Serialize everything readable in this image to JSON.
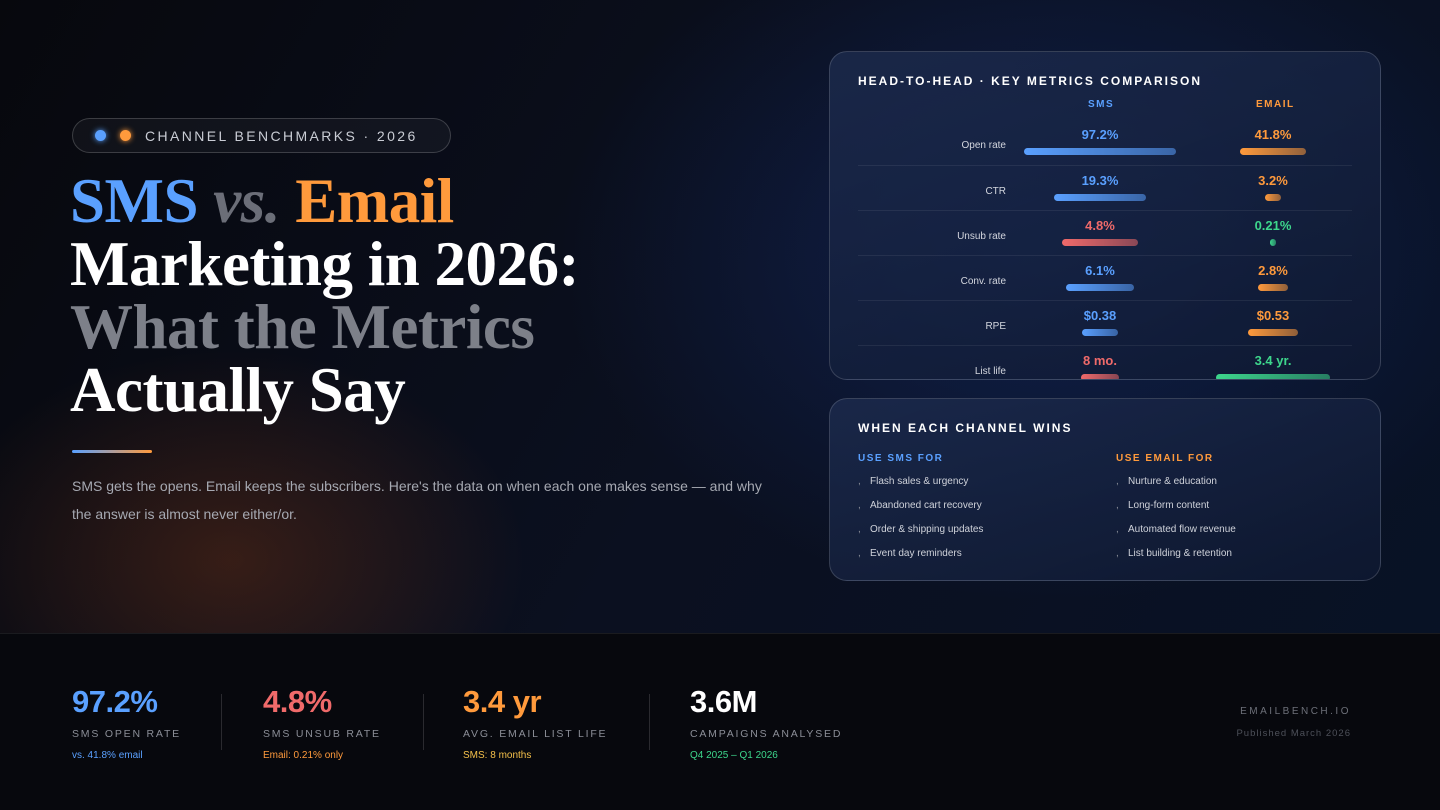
{
  "colors": {
    "sms": "#5aa0ff",
    "email": "#ff9a3c",
    "red": "#f06a6a",
    "green": "#3dd68c"
  },
  "badge": {
    "text": "CHANNEL BENCHMARKS · 2026",
    "icons": [
      "blue-dot",
      "orange-dot"
    ]
  },
  "headline": {
    "sms": "SMS",
    "vs": "vs.",
    "email": "Email",
    "line2": "Marketing in 2026:",
    "line3": "What the Metrics",
    "line4": "Actually Say"
  },
  "lead": "SMS gets the opens. Email keeps the subscribers. Here's the data on when each one makes sense — and why the answer is almost never either/or.",
  "comparison": {
    "title": "HEAD-TO-HEAD · KEY METRICS COMPARISON",
    "col_sms": "SMS",
    "col_email": "EMAIL",
    "rows": [
      {
        "label": "Open rate",
        "sms": "97.2%",
        "email": "41.8%",
        "sms_fill": 0.95,
        "email_fill": 0.41,
        "sms_color": "sms",
        "email_color": "email"
      },
      {
        "label": "CTR",
        "sms": "19.3%",
        "email": "3.2%",
        "sms_fill": 0.58,
        "email_fill": 0.1,
        "sms_color": "sms",
        "email_color": "email"
      },
      {
        "label": "Unsub rate",
        "sms": "4.8%",
        "email": "0.21%",
        "sms_fill": 0.48,
        "email_fill": 0.04,
        "sms_color": "red",
        "email_color": "green"
      },
      {
        "label": "Conv. rate",
        "sms": "6.1%",
        "email": "2.8%",
        "sms_fill": 0.43,
        "email_fill": 0.19,
        "sms_color": "sms",
        "email_color": "email"
      },
      {
        "label": "RPE",
        "sms": "$0.38",
        "email": "$0.53",
        "sms_fill": 0.23,
        "email_fill": 0.31,
        "sms_color": "sms",
        "email_color": "email"
      },
      {
        "label": "List life",
        "sms": "8 mo.",
        "email": "3.4 yr.",
        "sms_fill": 0.24,
        "email_fill": 0.71,
        "sms_color": "red",
        "email_color": "green"
      }
    ]
  },
  "wins": {
    "title": "WHEN EACH CHANNEL WINS",
    "sms": {
      "heading": "USE SMS FOR",
      "items": [
        "Flash sales & urgency",
        "Abandoned cart recovery",
        "Order & shipping updates",
        "Event day reminders"
      ]
    },
    "email": {
      "heading": "USE EMAIL FOR",
      "items": [
        "Nurture & education",
        "Long-form content",
        "Automated flow revenue",
        "List building & retention"
      ]
    },
    "bullet": ","
  },
  "stats": [
    {
      "value": "97.2%",
      "label": "SMS OPEN RATE",
      "sub": "vs. 41.8% email",
      "color": "#5aa0ff",
      "sub_color": "#5aa0ff"
    },
    {
      "value": "4.8%",
      "label": "SMS UNSUB RATE",
      "sub": "Email: 0.21% only",
      "color": "#f06a6a",
      "sub_color": "#ff9a3c"
    },
    {
      "value": "3.4 yr",
      "label": "AVG. EMAIL LIST LIFE",
      "sub": "SMS: 8 months",
      "color": "#ff9a3c",
      "sub_color": "#f5c04a"
    },
    {
      "value": "3.6M",
      "label": "CAMPAIGNS ANALYSED",
      "sub": "Q4 2025 – Q1 2026",
      "color": "#ffffff",
      "sub_color": "#3dd68c"
    }
  ],
  "footer": {
    "brand": "EMAILBENCH.IO",
    "published": "Published March 2026"
  }
}
